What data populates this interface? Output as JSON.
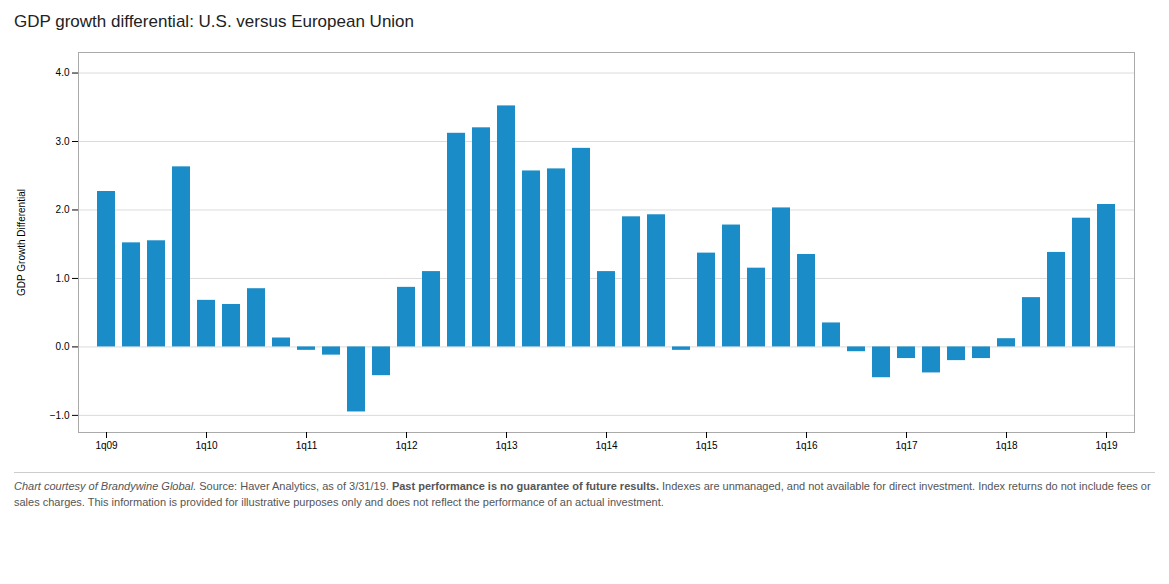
{
  "chart_data": {
    "type": "bar",
    "title": "GDP growth differential: U.S. versus European Union",
    "ylabel": "GDP Growth Differential",
    "color": "#1a8dc8",
    "categories": [
      "1q09",
      null,
      null,
      null,
      "1q10",
      null,
      null,
      null,
      "1q11",
      null,
      null,
      null,
      "1q12",
      null,
      null,
      null,
      "1q13",
      null,
      null,
      null,
      "1q14",
      null,
      null,
      null,
      "1q15",
      null,
      null,
      null,
      "1q16",
      null,
      null,
      null,
      "1q17",
      null,
      null,
      null,
      "1q18",
      null,
      null,
      null,
      "1q19"
    ],
    "values": [
      2.27,
      1.52,
      1.55,
      2.63,
      0.68,
      0.62,
      0.85,
      0.13,
      -0.05,
      -0.12,
      -0.95,
      -0.42,
      0.87,
      1.1,
      3.12,
      3.2,
      3.52,
      2.57,
      2.6,
      2.9,
      1.1,
      1.9,
      1.93,
      -0.05,
      1.37,
      1.78,
      1.15,
      2.03,
      1.35,
      0.35,
      -0.07,
      -0.45,
      -0.17,
      -0.38,
      -0.2,
      -0.17,
      0.12,
      0.72,
      1.38,
      1.88,
      2.08
    ],
    "ylim": [
      -1.25,
      4.3
    ],
    "yticks": [
      -1,
      0,
      1,
      2,
      3,
      4
    ],
    "grid": true,
    "footnote": [
      "Chart courtesy of Brandywine Global.",
      " Source: Haver Analytics, as of 3/31/19. ",
      "Past performance is no guarantee of future results.",
      " Indexes are unmanaged, and not available for direct investment. Index returns do not include fees or sales charges. This information is provided for illustrative purposes only and does not reflect the performance of an actual investment."
    ]
  }
}
